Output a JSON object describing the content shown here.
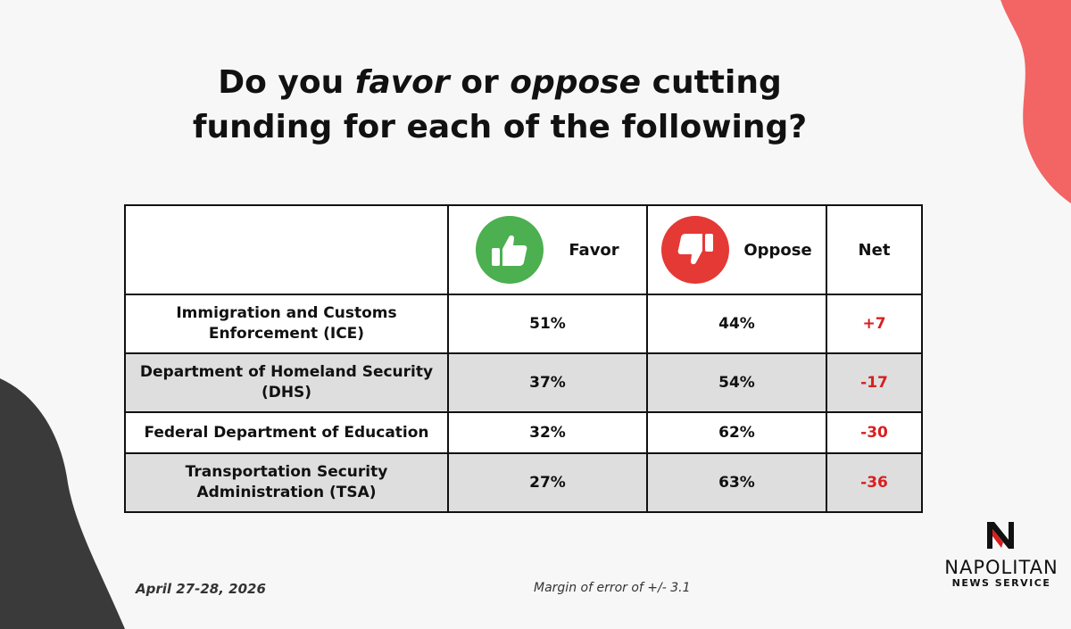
{
  "colors": {
    "background": "#f7f7f7",
    "accent_coral": "#f36464",
    "accent_dark": "#3a3a3a",
    "favor_green": "#4caf50",
    "oppose_red": "#e53935",
    "net_red": "#d81f1f",
    "shaded_row": "#dedede"
  },
  "title": {
    "line1_pre": "Do you ",
    "line1_em1": "favor",
    "line1_mid": " or ",
    "line1_em2": "oppose",
    "line1_post": " cutting",
    "line2": "funding for each of the following?"
  },
  "chart_data": {
    "type": "table",
    "columns": [
      "",
      "Favor",
      "Oppose",
      "Net"
    ],
    "column_icons": {
      "Favor": "thumbs-up-icon",
      "Oppose": "thumbs-down-icon"
    },
    "rows": [
      {
        "agency": "Immigration and Customs Enforcement (ICE)",
        "favor": "51%",
        "oppose": "44%",
        "net": "+7"
      },
      {
        "agency": "Department of Homeland Security (DHS)",
        "favor": "37%",
        "oppose": "54%",
        "net": "-17"
      },
      {
        "agency": "Federal Department of Education",
        "favor": "32%",
        "oppose": "62%",
        "net": "-30"
      },
      {
        "agency": "Transportation Security Administration (TSA)",
        "favor": "27%",
        "oppose": "63%",
        "net": "-36"
      }
    ]
  },
  "footer": {
    "date": "April 27-28, 2026",
    "margin": "Margin of error of +/- 3.1"
  },
  "logo": {
    "name": "NAPOLITAN",
    "sub": "NEWS SERVICE",
    "icon": "napolitan-n-logo-icon"
  }
}
